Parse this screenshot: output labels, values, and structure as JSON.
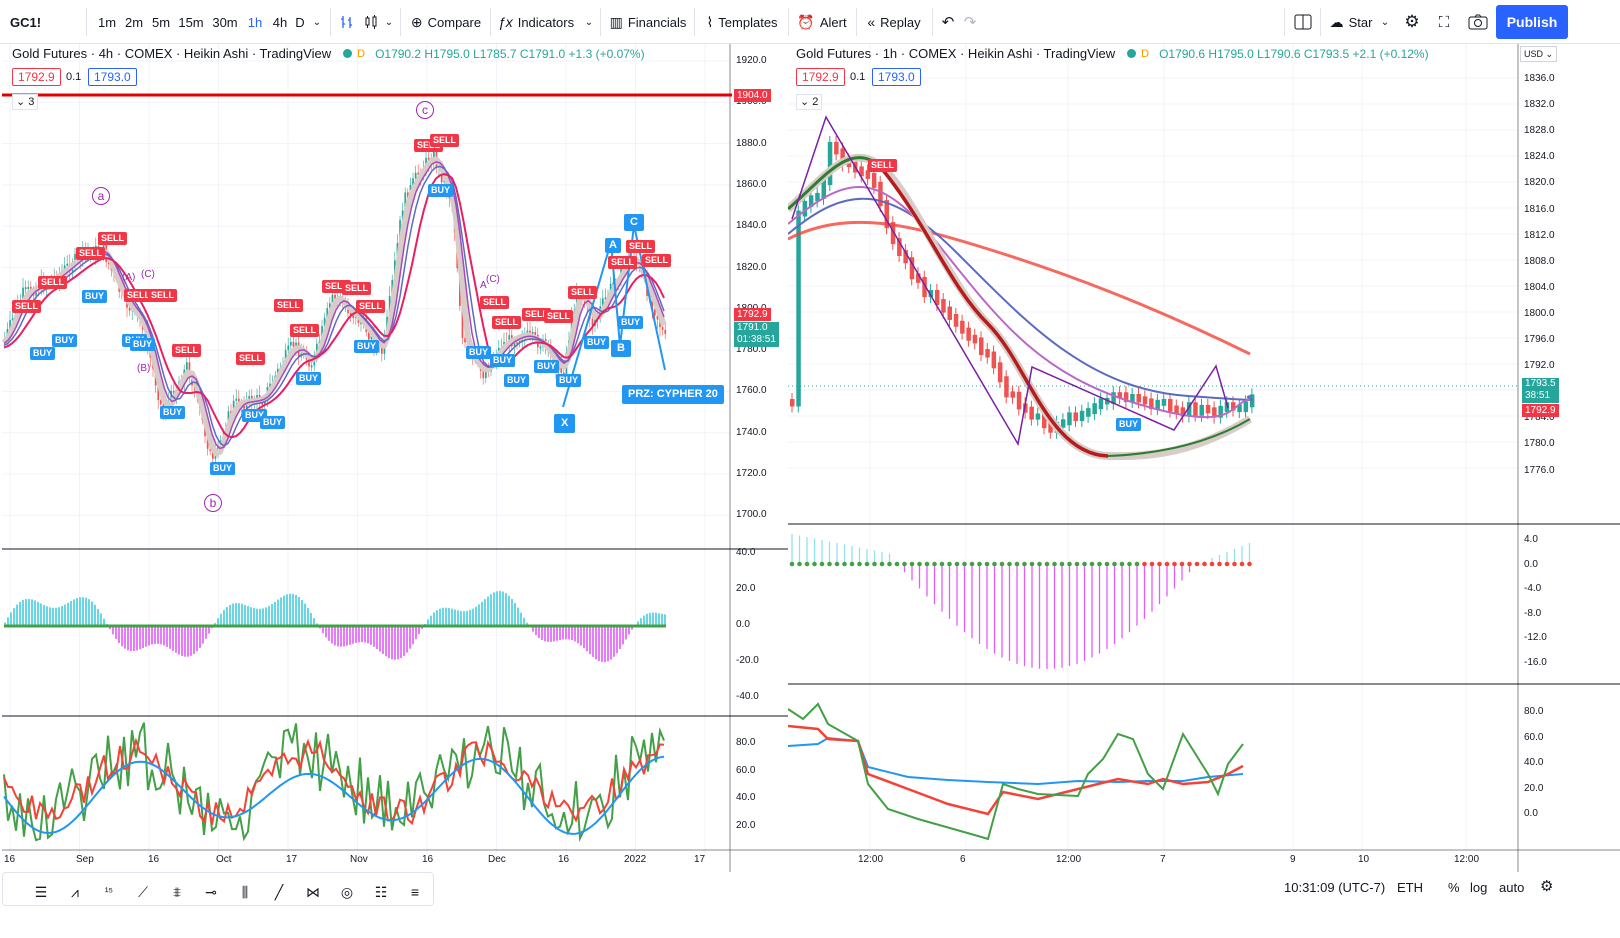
{
  "toolbar": {
    "symbol": "GC1!",
    "intervals": [
      "1m",
      "2m",
      "5m",
      "15m",
      "30m",
      "1h",
      "4h",
      "D"
    ],
    "active_interval": "1h",
    "compare": "Compare",
    "indicators": "Indicators",
    "financials": "Financials",
    "templates": "Templates",
    "alert": "Alert",
    "replay": "Replay",
    "star": "Star",
    "publish": "Publish"
  },
  "left_chart": {
    "title": "Gold Futures · 4h · COMEX · Heikin Ashi · TradingView",
    "ohlc": "O1790.2 H1795.0 L1785.7 C1791.0 +1.3 (+0.07%)",
    "bid": "1792.9",
    "spread": "0.1",
    "ask": "1793.0",
    "collapse": "3",
    "price_axis": [
      "1920.0",
      "1900.0",
      "1880.0",
      "1860.0",
      "1840.0",
      "1820.0",
      "1800.0",
      "1780.0",
      "1760.0",
      "1740.0",
      "1720.0",
      "1700.0"
    ],
    "hline_label": "1904.0",
    "price_tag_red": "1792.9",
    "price_tag_green": "1791.0",
    "countdown": "01:38:51",
    "osc_axis": [
      "40.0",
      "20.0",
      "0.0",
      "-20.0",
      "-40.0"
    ],
    "rsi_axis": [
      "80.0",
      "60.0",
      "40.0",
      "20.0"
    ],
    "time_axis": [
      "16",
      "Sep",
      "16",
      "Oct",
      "17",
      "Nov",
      "16",
      "Dec",
      "16",
      "2022",
      "17"
    ],
    "wave_labels": [
      "a",
      "b",
      "c"
    ],
    "points": [
      "(A)",
      "(C)",
      "(B)",
      "A",
      "(C)"
    ],
    "pattern_points": [
      "A",
      "C",
      "B",
      "X"
    ],
    "prz": "PRZ: CYPHER 20",
    "signal_sell": "SELL",
    "signal_buy": "BUY"
  },
  "right_chart": {
    "title": "Gold Futures · 1h · COMEX · Heikin Ashi · TradingView",
    "ohlc": "O1790.6 H1795.0 L1790.6 C1793.5 +2.1 (+0.12%)",
    "bid": "1792.9",
    "spread": "0.1",
    "ask": "1793.0",
    "collapse": "2",
    "currency": "USD",
    "price_axis": [
      "1836.0",
      "1832.0",
      "1828.0",
      "1824.0",
      "1820.0",
      "1816.0",
      "1812.0",
      "1808.0",
      "1804.0",
      "1800.0",
      "1796.0",
      "1792.0",
      "1788.0",
      "1784.0",
      "1780.0",
      "1776.0"
    ],
    "price_tag_green": "1793.5",
    "countdown": "38:51",
    "price_tag_red": "1792.9",
    "osc_axis": [
      "4.0",
      "0.0",
      "-4.0",
      "-8.0",
      "-12.0",
      "-16.0"
    ],
    "rsi_axis": [
      "80.0",
      "60.0",
      "40.0",
      "20.0",
      "0.0"
    ],
    "time_axis": [
      "12:00",
      "6",
      "12:00",
      "7",
      "9",
      "10",
      "12:00"
    ],
    "signal_sell": "SELL",
    "signal_buy": "BUY"
  },
  "bottombar": {
    "clock": "10:31:09 (UTC-7)",
    "session": "ETH",
    "percent": "%",
    "log": "log",
    "auto": "auto"
  }
}
